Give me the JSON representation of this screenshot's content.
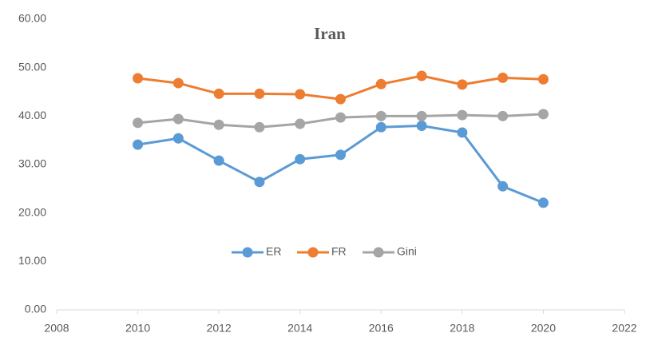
{
  "chart_data": {
    "type": "line",
    "title": "Iran",
    "x": [
      2010,
      2011,
      2012,
      2013,
      2014,
      2015,
      2016,
      2017,
      2018,
      2019,
      2020
    ],
    "series": [
      {
        "name": "ER",
        "color": "#5b9bd5",
        "values": [
          34.1,
          35.4,
          30.8,
          26.4,
          31.1,
          32.0,
          37.7,
          38.0,
          36.6,
          25.5,
          22.1
        ]
      },
      {
        "name": "FR",
        "color": "#ed7d31",
        "values": [
          47.8,
          46.8,
          44.6,
          44.6,
          44.5,
          43.5,
          46.6,
          48.3,
          46.5,
          47.9,
          47.6
        ]
      },
      {
        "name": "Gini",
        "color": "#a5a5a5",
        "values": [
          38.6,
          39.4,
          38.2,
          37.7,
          38.4,
          39.7,
          40.0,
          40.0,
          40.2,
          40.0,
          40.4
        ]
      }
    ],
    "xlim": [
      2008,
      2022
    ],
    "xticks": [
      2008,
      2010,
      2012,
      2014,
      2016,
      2018,
      2020,
      2022
    ],
    "ylim": [
      0,
      60
    ],
    "yticks": [
      {
        "value": 0,
        "label": "0.00"
      },
      {
        "value": 10,
        "label": "10.00"
      },
      {
        "value": 20,
        "label": "20.00"
      },
      {
        "value": 30,
        "label": "30.00"
      },
      {
        "value": 40,
        "label": "40.00"
      },
      {
        "value": 50,
        "label": "50.00"
      },
      {
        "value": 60,
        "label": "60.00"
      }
    ],
    "legend": "bottom"
  }
}
